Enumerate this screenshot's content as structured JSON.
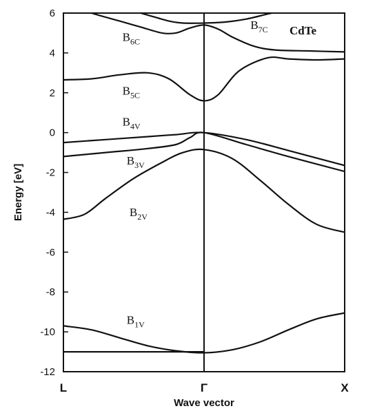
{
  "chart_data": {
    "type": "line",
    "title": "",
    "material_label": "CdTe",
    "xlabel": "Wave vector",
    "ylabel": "Energy [eV]",
    "ylim": [
      -12,
      6
    ],
    "yticks": [
      6,
      4,
      2,
      0,
      -2,
      -4,
      -6,
      -8,
      -10,
      -12
    ],
    "xlim": [
      -1,
      1
    ],
    "xticks": [
      {
        "x": -1,
        "label": "L"
      },
      {
        "x": 0,
        "label": "Γ"
      },
      {
        "x": 1,
        "label": "X"
      }
    ],
    "grid": false,
    "band_labels": [
      {
        "main": "B",
        "sub": "7C",
        "x": 0.33,
        "y": 5.2
      },
      {
        "main": "B",
        "sub": "6C",
        "x": -0.58,
        "y": 4.6
      },
      {
        "main": "B",
        "sub": "5C",
        "x": -0.58,
        "y": 1.9
      },
      {
        "main": "B",
        "sub": "4V",
        "x": -0.58,
        "y": 0.35
      },
      {
        "main": "B",
        "sub": "3V",
        "x": -0.55,
        "y": -1.6
      },
      {
        "main": "B",
        "sub": "2V",
        "x": -0.53,
        "y": -4.2
      },
      {
        "main": "B",
        "sub": "1V",
        "x": -0.55,
        "y": -9.6
      }
    ],
    "series": [
      {
        "x": [
          -1,
          -0.7,
          -0.4,
          0
        ],
        "values": [
          -11.0,
          -11.0,
          -11.0,
          -11.0
        ]
      },
      {
        "x": [
          -1,
          -0.8,
          -0.6,
          -0.4,
          -0.2,
          0,
          0.2,
          0.4,
          0.6,
          0.8,
          1
        ],
        "values": [
          -9.7,
          -9.9,
          -10.3,
          -10.7,
          -10.95,
          -11.05,
          -10.9,
          -10.5,
          -9.9,
          -9.35,
          -9.05
        ]
      },
      {
        "x": [
          -1,
          -0.85,
          -0.7,
          -0.5,
          -0.3,
          -0.15,
          0,
          0.2,
          0.4,
          0.6,
          0.8,
          1
        ],
        "values": [
          -4.35,
          -4.1,
          -3.3,
          -2.3,
          -1.5,
          -1.0,
          -0.85,
          -1.3,
          -2.4,
          -3.6,
          -4.6,
          -5.0
        ]
      },
      {
        "x": [
          -1,
          -0.7,
          -0.4,
          -0.2,
          -0.1,
          0,
          0.3,
          0.6,
          1
        ],
        "values": [
          -1.2,
          -1.0,
          -0.8,
          -0.6,
          -0.25,
          0.0,
          -0.6,
          -1.2,
          -1.95
        ]
      },
      {
        "x": [
          -1,
          -0.7,
          -0.4,
          -0.2,
          0,
          0.3,
          0.6,
          1
        ],
        "values": [
          -0.5,
          -0.35,
          -0.2,
          -0.1,
          0.0,
          -0.35,
          -0.9,
          -1.65
        ]
      },
      {
        "x": [
          -1,
          -0.8,
          -0.6,
          -0.4,
          -0.25,
          -0.1,
          0,
          0.1,
          0.25,
          0.45,
          0.6,
          0.8,
          1
        ],
        "values": [
          2.65,
          2.7,
          2.9,
          3.0,
          2.7,
          1.9,
          1.6,
          1.9,
          3.1,
          3.75,
          3.7,
          3.65,
          3.7
        ]
      },
      {
        "x": [
          -1,
          -0.8,
          -0.6,
          -0.45,
          -0.3,
          -0.2,
          -0.1,
          0,
          0.1,
          0.2,
          0.35,
          0.5,
          0.75,
          1
        ],
        "values": [
          6.5,
          6.0,
          5.6,
          5.3,
          5.0,
          5.0,
          5.25,
          5.4,
          5.2,
          4.8,
          4.35,
          4.15,
          4.1,
          4.05
        ]
      },
      {
        "x": [
          -0.5,
          -0.4,
          -0.25,
          -0.15,
          0,
          0.15,
          0.3,
          0.45,
          0.55
        ],
        "values": [
          6.1,
          5.9,
          5.6,
          5.5,
          5.5,
          5.55,
          5.7,
          5.95,
          6.1
        ]
      }
    ]
  }
}
